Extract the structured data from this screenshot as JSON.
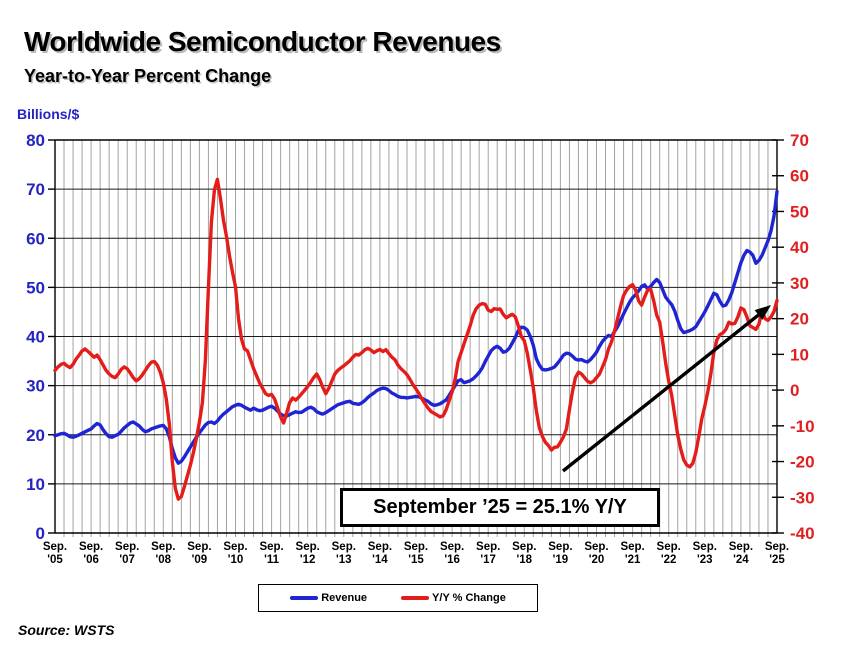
{
  "title": "Worldwide Semiconductor Revenues",
  "subtitle": "Year-to-Year Percent Change",
  "left_axis_unit": "Billions/$",
  "source": "Source: WSTS",
  "annotation": {
    "text": "September ’25 = 25.1% Y/Y"
  },
  "legend": {
    "items": [
      {
        "label": "Revenue",
        "color": "#1f25d2"
      },
      {
        "label": "Y/Y % Change",
        "color": "#e41d1a"
      }
    ]
  },
  "colors": {
    "revenue_line": "#1f25d2",
    "yoy_line": "#e41d1a",
    "left_tick_labels": "#2424c4",
    "right_tick_labels": "#e02020",
    "vertical_grid": "#a3a3a3",
    "horizontal_grid": "#1a1a1a",
    "axis": "#000000",
    "arrow": "#000000"
  },
  "chart_data": {
    "type": "line",
    "title": "Worldwide Semiconductor Revenues",
    "subtitle": "Year-to-Year Percent Change",
    "x_start": "2005-09",
    "x_end": "2025-09",
    "frequency": "monthly",
    "x_tick_prefix": "Sep.",
    "x_tick_labels": [
      "'05",
      "'06",
      "'07",
      "'08",
      "'09",
      "'10",
      "'11",
      "'12",
      "'13",
      "'14",
      "'15",
      "'16",
      "'17",
      "'18",
      "'19",
      "'20",
      "'21",
      "'22",
      "'23",
      "'24",
      "'25"
    ],
    "left_axis": {
      "label": "Billions/$",
      "min": 0,
      "max": 80,
      "tick_step": 10
    },
    "right_axis": {
      "label": "Y/Y % Change",
      "min": -40,
      "max": 70,
      "tick_step": 10
    },
    "grid": {
      "vertical_every_months": 3,
      "horizontal_at_left_ticks": true
    },
    "legend_position": "bottom-center",
    "series": [
      {
        "name": "Revenue",
        "axis": "left",
        "color": "#1f25d2",
        "values": [
          19.8,
          20.0,
          20.2,
          20.3,
          20.0,
          19.6,
          19.5,
          19.7,
          20.0,
          20.3,
          20.6,
          20.9,
          21.2,
          21.8,
          22.3,
          22.0,
          21.0,
          20.2,
          19.6,
          19.5,
          19.8,
          20.1,
          20.7,
          21.4,
          21.9,
          22.4,
          22.6,
          22.2,
          21.8,
          21.1,
          20.6,
          20.8,
          21.2,
          21.4,
          21.6,
          21.8,
          21.9,
          21.2,
          19.6,
          17.2,
          15.3,
          14.2,
          14.6,
          15.5,
          16.5,
          17.5,
          18.5,
          19.5,
          20.4,
          21.2,
          22.0,
          22.5,
          22.6,
          22.3,
          22.8,
          23.6,
          24.2,
          24.7,
          25.2,
          25.7,
          26.0,
          26.2,
          26.0,
          25.6,
          25.3,
          25.0,
          25.4,
          25.1,
          24.9,
          25.0,
          25.3,
          25.6,
          25.8,
          25.4,
          24.8,
          24.2,
          23.9,
          23.8,
          24.1,
          24.4,
          24.7,
          24.5,
          24.6,
          25.0,
          25.4,
          25.6,
          25.3,
          24.7,
          24.4,
          24.2,
          24.5,
          24.9,
          25.3,
          25.7,
          26.1,
          26.3,
          26.5,
          26.7,
          26.8,
          26.4,
          26.3,
          26.2,
          26.5,
          27.0,
          27.6,
          28.1,
          28.5,
          29.0,
          29.3,
          29.5,
          29.4,
          29.0,
          28.5,
          28.2,
          27.8,
          27.6,
          27.6,
          27.5,
          27.6,
          27.7,
          27.8,
          27.7,
          27.4,
          27.1,
          26.8,
          26.3,
          26.0,
          26.1,
          26.3,
          26.7,
          27.1,
          28.0,
          29.0,
          30.0,
          31.0,
          31.2,
          30.6,
          30.8,
          31.0,
          31.4,
          32.0,
          32.7,
          33.6,
          34.9,
          36.0,
          37.1,
          37.7,
          38.0,
          37.6,
          36.8,
          37.0,
          37.6,
          38.7,
          39.8,
          41.2,
          41.9,
          41.8,
          41.3,
          40.0,
          38.2,
          35.5,
          34.2,
          33.3,
          33.2,
          33.3,
          33.5,
          33.8,
          34.5,
          35.3,
          36.2,
          36.6,
          36.5,
          36.0,
          35.4,
          35.2,
          35.3,
          35.0,
          34.8,
          35.3,
          36.0,
          36.8,
          38.0,
          39.0,
          39.7,
          40.2,
          40.0,
          41.0,
          42.0,
          43.3,
          44.6,
          45.8,
          47.0,
          47.9,
          48.5,
          49.3,
          50.2,
          50.5,
          49.7,
          50.2,
          51.0,
          51.6,
          51.0,
          49.5,
          48.0,
          47.2,
          46.5,
          45.2,
          43.3,
          41.6,
          40.8,
          41.0,
          41.2,
          41.5,
          42.0,
          43.0,
          44.0,
          45.0,
          46.2,
          47.5,
          48.8,
          48.5,
          47.2,
          46.2,
          46.4,
          47.5,
          49.0,
          51.0,
          53.0,
          55.0,
          56.5,
          57.5,
          57.2,
          56.5,
          54.9,
          55.5,
          56.5,
          58.0,
          59.5,
          61.5,
          64.5,
          69.5
        ]
      },
      {
        "name": "Y/Y % Change",
        "axis": "right",
        "color": "#e41d1a",
        "values": [
          5.5,
          6.5,
          7.2,
          7.5,
          6.8,
          6.3,
          7.2,
          8.7,
          9.8,
          11.0,
          11.5,
          10.8,
          10.0,
          9.2,
          9.8,
          8.5,
          7.0,
          5.5,
          4.5,
          3.8,
          3.5,
          4.5,
          5.8,
          6.5,
          6.0,
          4.8,
          3.5,
          2.6,
          3.2,
          4.2,
          5.5,
          6.8,
          7.8,
          8.0,
          7.0,
          5.0,
          2.0,
          -2.5,
          -9.5,
          -20.0,
          -27.5,
          -30.5,
          -29.8,
          -27.0,
          -24.0,
          -21.0,
          -17.5,
          -13.5,
          -9.0,
          -3.5,
          8.5,
          28.5,
          47.0,
          56.0,
          59.0,
          53.5,
          47.5,
          43.0,
          37.5,
          33.0,
          28.9,
          20.0,
          14.3,
          11.5,
          11.0,
          8.5,
          6.0,
          4.0,
          2.0,
          0.5,
          -1.0,
          -1.5,
          -1.2,
          -2.5,
          -5.0,
          -7.5,
          -9.2,
          -6.5,
          -3.5,
          -2.2,
          -2.8,
          -2.0,
          -1.0,
          0.0,
          1.0,
          2.2,
          3.5,
          4.5,
          3.0,
          0.8,
          -1.0,
          0.5,
          2.5,
          4.5,
          5.5,
          6.2,
          6.8,
          7.5,
          8.2,
          9.2,
          10.0,
          9.8,
          10.5,
          11.3,
          11.7,
          11.2,
          10.5,
          11.0,
          11.4,
          10.8,
          11.3,
          10.2,
          9.2,
          8.5,
          7.0,
          6.0,
          5.2,
          4.3,
          3.0,
          1.5,
          0.3,
          -1.0,
          -2.5,
          -3.8,
          -5.0,
          -6.0,
          -6.5,
          -7.0,
          -7.5,
          -7.2,
          -5.5,
          -3.0,
          -0.5,
          3.0,
          8.0,
          10.5,
          13.0,
          15.5,
          18.0,
          21.0,
          22.8,
          23.8,
          24.2,
          24.0,
          22.4,
          22.0,
          22.8,
          22.6,
          22.7,
          21.2,
          20.2,
          20.8,
          21.2,
          20.5,
          18.0,
          15.0,
          13.8,
          10.3,
          5.6,
          0.6,
          -5.7,
          -10.5,
          -13.0,
          -14.6,
          -15.5,
          -16.8,
          -16.0,
          -15.9,
          -14.6,
          -13.1,
          -10.9,
          -5.5,
          -0.5,
          3.5,
          5.0,
          4.5,
          3.5,
          2.5,
          2.0,
          2.5,
          3.5,
          4.5,
          6.5,
          8.5,
          11.5,
          13.5,
          16.5,
          20.0,
          23.5,
          26.5,
          28.0,
          29.0,
          29.5,
          28.0,
          25.0,
          23.8,
          26.0,
          28.0,
          28.3,
          25.0,
          21.0,
          19.0,
          13.5,
          7.5,
          2.5,
          -1.5,
          -7.0,
          -12.5,
          -16.5,
          -19.5,
          -21.0,
          -21.5,
          -20.5,
          -17.5,
          -13.0,
          -8.0,
          -4.5,
          -0.5,
          4.5,
          10.5,
          14.0,
          15.5,
          16.0,
          17.0,
          19.0,
          18.5,
          18.7,
          20.5,
          23.0,
          22.5,
          20.5,
          18.0,
          17.5,
          17.0,
          18.5,
          22.5,
          20.0,
          19.5,
          20.5,
          22.0,
          25.1
        ]
      }
    ],
    "annotations": [
      {
        "type": "callout-box",
        "text": "September ’25 = 25.1% Y/Y"
      },
      {
        "type": "arrow",
        "points_to": "end of Y/Y % Change line (Sep '25)"
      }
    ]
  }
}
